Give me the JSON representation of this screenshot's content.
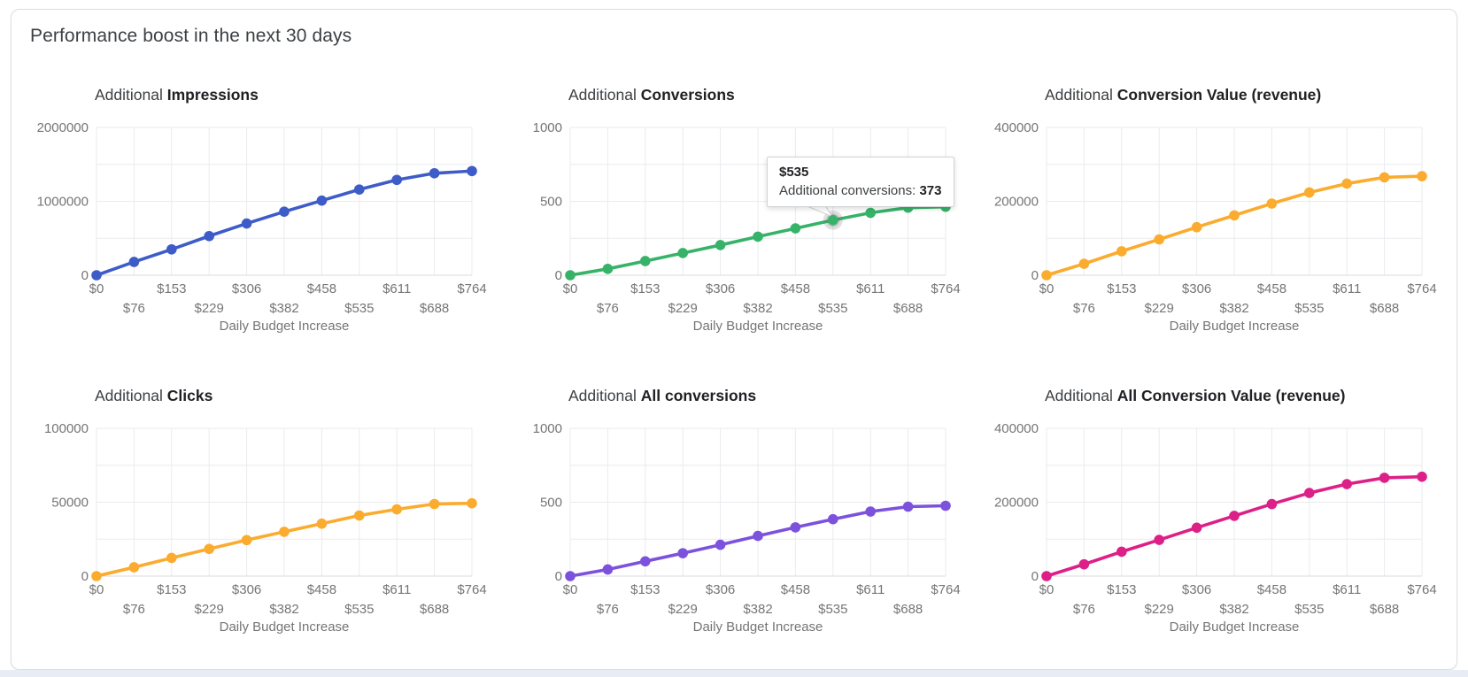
{
  "page": {
    "title": "Performance boost in the next 30 days"
  },
  "colors": {
    "blue": "#3d5cc8",
    "green": "#36b368",
    "orange": "#fbab2e",
    "purple": "#7c52dd",
    "pink": "#dd2088",
    "grid_line": "#e9ebee",
    "axis_line": "#d8dbdf",
    "axis_text": "#757575",
    "title_text": "#3c4043"
  },
  "x_axis": {
    "label": "Daily Budget Increase",
    "tick_labels": [
      "$0",
      "$76",
      "$153",
      "$229",
      "$306",
      "$382",
      "$458",
      "$535",
      "$611",
      "$688",
      "$764"
    ]
  },
  "tooltip": {
    "chart_index": 1,
    "point_index": 7,
    "title": "$535",
    "label": "Additional conversions: ",
    "value": "373"
  },
  "chart_data": [
    {
      "type": "line",
      "id": "additional-impressions",
      "title_prefix": "Additional",
      "title_metric": "Impressions",
      "color": "#3d5cc8",
      "x": [
        0,
        76,
        153,
        229,
        306,
        382,
        458,
        535,
        611,
        688,
        764
      ],
      "values": [
        0,
        180000,
        350000,
        530000,
        700000,
        860000,
        1010000,
        1160000,
        1290000,
        1380000,
        1410000
      ],
      "xlabel": "Daily Budget Increase",
      "ylim": [
        0,
        2000000
      ],
      "yticks": [
        0,
        1000000,
        2000000
      ],
      "grid": true,
      "legend": "none"
    },
    {
      "type": "line",
      "id": "additional-conversions",
      "title_prefix": "Additional",
      "title_metric": "Conversions",
      "color": "#36b368",
      "x": [
        0,
        76,
        153,
        229,
        306,
        382,
        458,
        535,
        611,
        688,
        764
      ],
      "values": [
        0,
        43,
        96,
        150,
        204,
        261,
        317,
        373,
        422,
        457,
        463
      ],
      "xlabel": "Daily Budget Increase",
      "ylim": [
        0,
        1000
      ],
      "yticks": [
        0,
        500,
        1000
      ],
      "grid": true,
      "legend": "none"
    },
    {
      "type": "line",
      "id": "additional-conversion-value-revenue",
      "title_prefix": "Additional",
      "title_metric": "Conversion Value (revenue)",
      "color": "#fbab2e",
      "x": [
        0,
        76,
        153,
        229,
        306,
        382,
        458,
        535,
        611,
        688,
        764
      ],
      "values": [
        0,
        31000,
        65000,
        97000,
        130000,
        162000,
        194000,
        224000,
        248000,
        265000,
        268000
      ],
      "xlabel": "Daily Budget Increase",
      "ylim": [
        0,
        400000
      ],
      "yticks": [
        0,
        200000,
        400000
      ],
      "grid": true,
      "legend": "none"
    },
    {
      "type": "line",
      "id": "additional-clicks",
      "title_prefix": "Additional",
      "title_metric": "Clicks",
      "color": "#fbab2e",
      "x": [
        0,
        76,
        153,
        229,
        306,
        382,
        458,
        535,
        611,
        688,
        764
      ],
      "values": [
        0,
        6000,
        12300,
        18400,
        24400,
        30000,
        35500,
        41000,
        45200,
        48800,
        49300
      ],
      "xlabel": "Daily Budget Increase",
      "ylim": [
        0,
        100000
      ],
      "yticks": [
        0,
        50000,
        100000
      ],
      "grid": true,
      "legend": "none"
    },
    {
      "type": "line",
      "id": "additional-all-conversions",
      "title_prefix": "Additional",
      "title_metric": "All conversions",
      "color": "#7c52dd",
      "x": [
        0,
        76,
        153,
        229,
        306,
        382,
        458,
        535,
        611,
        688,
        764
      ],
      "values": [
        0,
        45,
        100,
        155,
        212,
        272,
        330,
        385,
        437,
        470,
        476
      ],
      "xlabel": "Daily Budget Increase",
      "ylim": [
        0,
        1000
      ],
      "yticks": [
        0,
        500,
        1000
      ],
      "grid": true,
      "legend": "none"
    },
    {
      "type": "line",
      "id": "additional-all-conversion-value-revenue",
      "title_prefix": "Additional",
      "title_metric": "All Conversion Value (revenue)",
      "color": "#dd2088",
      "x": [
        0,
        76,
        153,
        229,
        306,
        382,
        458,
        535,
        611,
        688,
        764
      ],
      "values": [
        0,
        32000,
        66000,
        98000,
        131000,
        163000,
        195000,
        225000,
        249000,
        266000,
        269000
      ],
      "xlabel": "Daily Budget Increase",
      "ylim": [
        0,
        400000
      ],
      "yticks": [
        0,
        200000,
        400000
      ],
      "grid": true,
      "legend": "none"
    }
  ]
}
